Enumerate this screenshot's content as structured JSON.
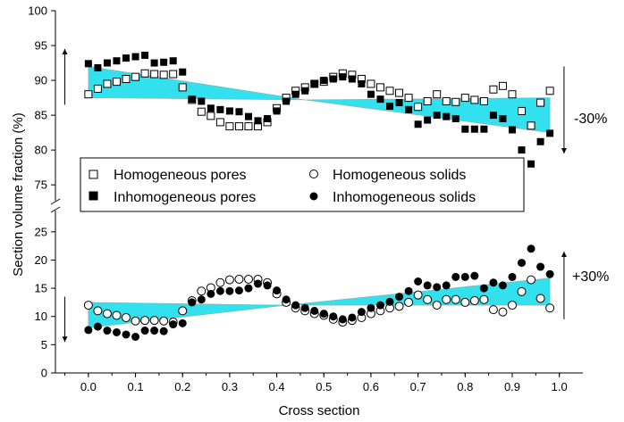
{
  "chart_data": {
    "type": "scatter",
    "xlabel": "Cross section",
    "ylabel": "Section volume fraction (%)",
    "xlim": [
      -0.07,
      1.05
    ],
    "xticks": [
      "0.0",
      "0.1",
      "0.2",
      "0.3",
      "0.4",
      "0.5",
      "0.6",
      "0.7",
      "0.8",
      "0.9",
      "1.0"
    ],
    "y_axis_break": {
      "lower": [
        0,
        27.5
      ],
      "upper": [
        74,
        100
      ]
    },
    "yticks_lower": [
      "0",
      "5",
      "10",
      "15",
      "20",
      "25"
    ],
    "yticks_upper": [
      "75",
      "80",
      "85",
      "90",
      "95",
      "100"
    ],
    "legend": {
      "placement": "center-left",
      "entries": [
        "Homogeneous pores",
        "Homogeneous solids",
        "Inhomogeneous pores",
        "Inhomogeneous solids"
      ]
    },
    "annotations": {
      "upper": "-30%",
      "lower": "+30%"
    },
    "bands": {
      "color": "#33e0ee",
      "upper": {
        "left": [
          87.5,
          92.0
        ],
        "cross": [
          0.46,
          87.2
        ],
        "right": [
          82.5,
          87.5
        ]
      },
      "lower": {
        "left": [
          8.0,
          12.5
        ],
        "cross": [
          0.42,
          12.0
        ],
        "right": [
          12.0,
          16.8
        ]
      }
    },
    "series": [
      {
        "name": "Homogeneous pores",
        "marker": "open-square",
        "x": [
          0.0,
          0.02,
          0.04,
          0.06,
          0.08,
          0.1,
          0.12,
          0.14,
          0.16,
          0.18,
          0.2,
          0.22,
          0.24,
          0.26,
          0.28,
          0.3,
          0.32,
          0.34,
          0.36,
          0.38,
          0.4,
          0.42,
          0.44,
          0.46,
          0.48,
          0.5,
          0.52,
          0.54,
          0.56,
          0.58,
          0.6,
          0.62,
          0.64,
          0.66,
          0.68,
          0.7,
          0.72,
          0.74,
          0.76,
          0.78,
          0.8,
          0.82,
          0.84,
          0.86,
          0.88,
          0.9,
          0.92,
          0.94,
          0.96,
          0.98
        ],
        "y": [
          88.0,
          88.8,
          89.5,
          89.8,
          90.2,
          90.5,
          91.0,
          90.9,
          90.8,
          90.9,
          89.0,
          87.2,
          85.5,
          84.9,
          84.0,
          83.4,
          83.4,
          83.4,
          83.4,
          84.0,
          86.0,
          87.5,
          88.5,
          89.0,
          89.5,
          89.8,
          90.5,
          91.0,
          90.8,
          90.2,
          89.5,
          89.0,
          88.5,
          88.2,
          87.5,
          86.2,
          87.0,
          88.0,
          87.0,
          86.9,
          87.5,
          87.2,
          87.0,
          88.7,
          89.2,
          88.0,
          85.6,
          83.5,
          86.8,
          88.5
        ]
      },
      {
        "name": "Inhomogeneous pores",
        "marker": "filled-square",
        "x": [
          0.0,
          0.02,
          0.04,
          0.06,
          0.08,
          0.1,
          0.12,
          0.14,
          0.16,
          0.18,
          0.2,
          0.22,
          0.24,
          0.26,
          0.28,
          0.3,
          0.32,
          0.34,
          0.36,
          0.38,
          0.4,
          0.42,
          0.44,
          0.46,
          0.48,
          0.5,
          0.52,
          0.54,
          0.56,
          0.58,
          0.6,
          0.62,
          0.64,
          0.66,
          0.68,
          0.7,
          0.72,
          0.74,
          0.76,
          0.78,
          0.8,
          0.82,
          0.84,
          0.86,
          0.88,
          0.9,
          0.92,
          0.94,
          0.96,
          0.98
        ],
        "y": [
          92.4,
          91.8,
          92.5,
          92.8,
          93.2,
          93.4,
          93.6,
          92.5,
          92.6,
          92.8,
          91.2,
          87.3,
          87.0,
          86.0,
          85.8,
          85.6,
          85.5,
          84.8,
          84.2,
          84.5,
          85.6,
          87.0,
          88.0,
          88.5,
          89.5,
          90.0,
          90.2,
          90.5,
          90.2,
          89.5,
          88.0,
          87.3,
          86.3,
          86.8,
          85.8,
          83.7,
          84.3,
          85.0,
          84.8,
          84.5,
          83.0,
          83.0,
          83.0,
          85.0,
          84.5,
          82.9,
          80.0,
          78.0,
          81.2,
          82.4
        ]
      },
      {
        "name": "Homogeneous solids",
        "marker": "open-circle",
        "x": [
          0.0,
          0.02,
          0.04,
          0.06,
          0.08,
          0.1,
          0.12,
          0.14,
          0.16,
          0.18,
          0.2,
          0.22,
          0.24,
          0.26,
          0.28,
          0.3,
          0.32,
          0.34,
          0.36,
          0.38,
          0.4,
          0.42,
          0.44,
          0.46,
          0.48,
          0.5,
          0.52,
          0.54,
          0.56,
          0.58,
          0.6,
          0.62,
          0.64,
          0.66,
          0.68,
          0.7,
          0.72,
          0.74,
          0.76,
          0.78,
          0.8,
          0.82,
          0.84,
          0.86,
          0.88,
          0.9,
          0.92,
          0.94,
          0.96,
          0.98
        ],
        "y": [
          12.0,
          11.0,
          10.5,
          10.2,
          9.8,
          9.2,
          9.3,
          9.3,
          9.2,
          9.0,
          11.0,
          12.8,
          14.5,
          15.1,
          16.0,
          16.5,
          16.6,
          16.6,
          16.6,
          16.0,
          14.0,
          12.5,
          11.5,
          11.0,
          10.5,
          10.2,
          9.5,
          9.0,
          9.3,
          9.8,
          10.5,
          11.0,
          11.5,
          11.8,
          12.5,
          13.8,
          13.0,
          12.0,
          13.0,
          13.0,
          12.5,
          12.8,
          13.0,
          11.2,
          10.8,
          12.0,
          14.4,
          16.5,
          13.2,
          11.5
        ]
      },
      {
        "name": "Inhomogeneous solids",
        "marker": "filled-circle",
        "x": [
          0.0,
          0.02,
          0.04,
          0.06,
          0.08,
          0.1,
          0.12,
          0.14,
          0.16,
          0.18,
          0.2,
          0.22,
          0.24,
          0.26,
          0.28,
          0.3,
          0.32,
          0.34,
          0.36,
          0.38,
          0.4,
          0.42,
          0.44,
          0.46,
          0.48,
          0.5,
          0.52,
          0.54,
          0.56,
          0.58,
          0.6,
          0.62,
          0.64,
          0.66,
          0.68,
          0.7,
          0.72,
          0.74,
          0.76,
          0.78,
          0.8,
          0.82,
          0.84,
          0.86,
          0.88,
          0.9,
          0.92,
          0.94,
          0.96,
          0.98
        ],
        "y": [
          7.6,
          8.2,
          7.5,
          7.2,
          6.8,
          6.4,
          7.5,
          7.5,
          7.4,
          8.6,
          8.8,
          12.5,
          13.0,
          14.0,
          14.5,
          14.5,
          14.6,
          15.0,
          15.8,
          15.5,
          14.6,
          13.0,
          12.0,
          11.5,
          11.0,
          10.5,
          10.0,
          9.5,
          9.8,
          10.8,
          11.5,
          12.0,
          12.6,
          13.5,
          14.5,
          16.2,
          15.5,
          15.2,
          15.5,
          17.0,
          17.0,
          17.2,
          15.0,
          16.0,
          15.5,
          17.0,
          19.5,
          22.0,
          18.8,
          17.5
        ]
      }
    ]
  }
}
